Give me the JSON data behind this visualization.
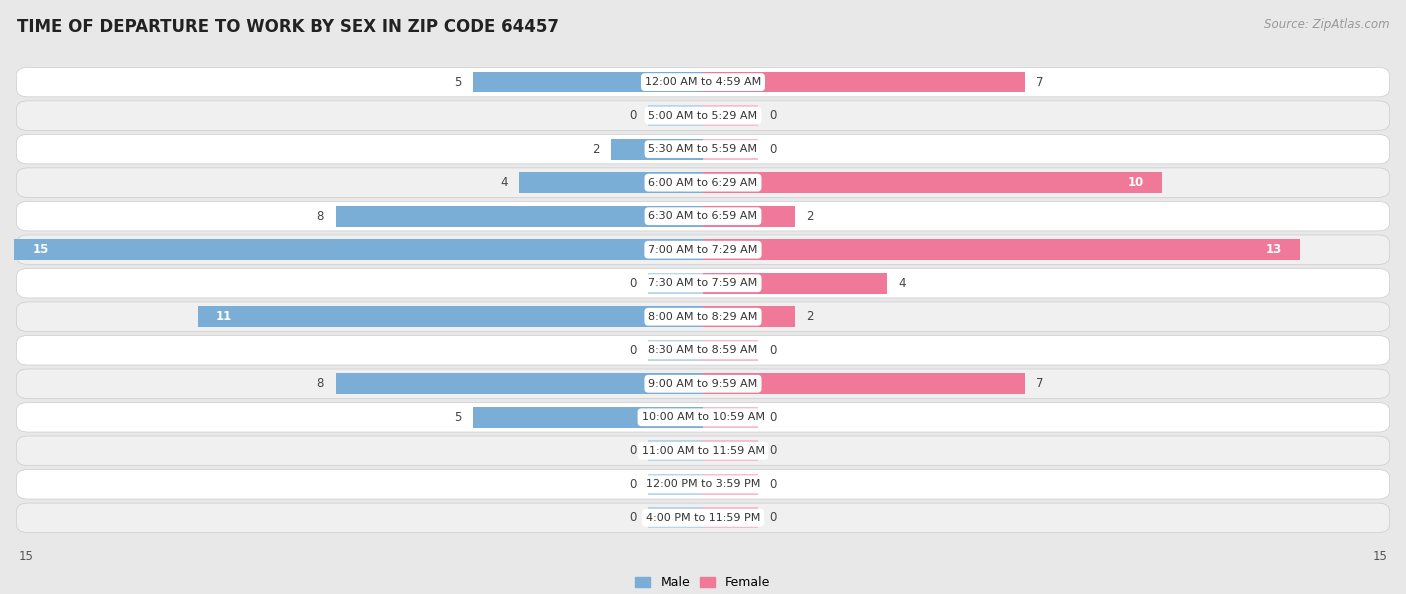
{
  "title": "TIME OF DEPARTURE TO WORK BY SEX IN ZIP CODE 64457",
  "source": "Source: ZipAtlas.com",
  "categories": [
    "12:00 AM to 4:59 AM",
    "5:00 AM to 5:29 AM",
    "5:30 AM to 5:59 AM",
    "6:00 AM to 6:29 AM",
    "6:30 AM to 6:59 AM",
    "7:00 AM to 7:29 AM",
    "7:30 AM to 7:59 AM",
    "8:00 AM to 8:29 AM",
    "8:30 AM to 8:59 AM",
    "9:00 AM to 9:59 AM",
    "10:00 AM to 10:59 AM",
    "11:00 AM to 11:59 AM",
    "12:00 PM to 3:59 PM",
    "4:00 PM to 11:59 PM"
  ],
  "male_values": [
    5,
    0,
    2,
    4,
    8,
    15,
    0,
    11,
    0,
    8,
    5,
    0,
    0,
    0
  ],
  "female_values": [
    7,
    0,
    0,
    10,
    2,
    13,
    4,
    2,
    0,
    7,
    0,
    0,
    0,
    0
  ],
  "male_color": "#7aaed6",
  "female_color": "#f07898",
  "male_color_light": "#bad4ea",
  "female_color_light": "#f8bcd0",
  "male_label": "Male",
  "female_label": "Female",
  "max_val": 15,
  "min_stub": 1.2,
  "bg_color": "#e8e8e8",
  "row_bg": "#ffffff",
  "row_alt_bg": "#f0f0f0",
  "title_fontsize": 12,
  "source_fontsize": 8.5,
  "label_fontsize": 8,
  "value_fontsize": 8.5
}
